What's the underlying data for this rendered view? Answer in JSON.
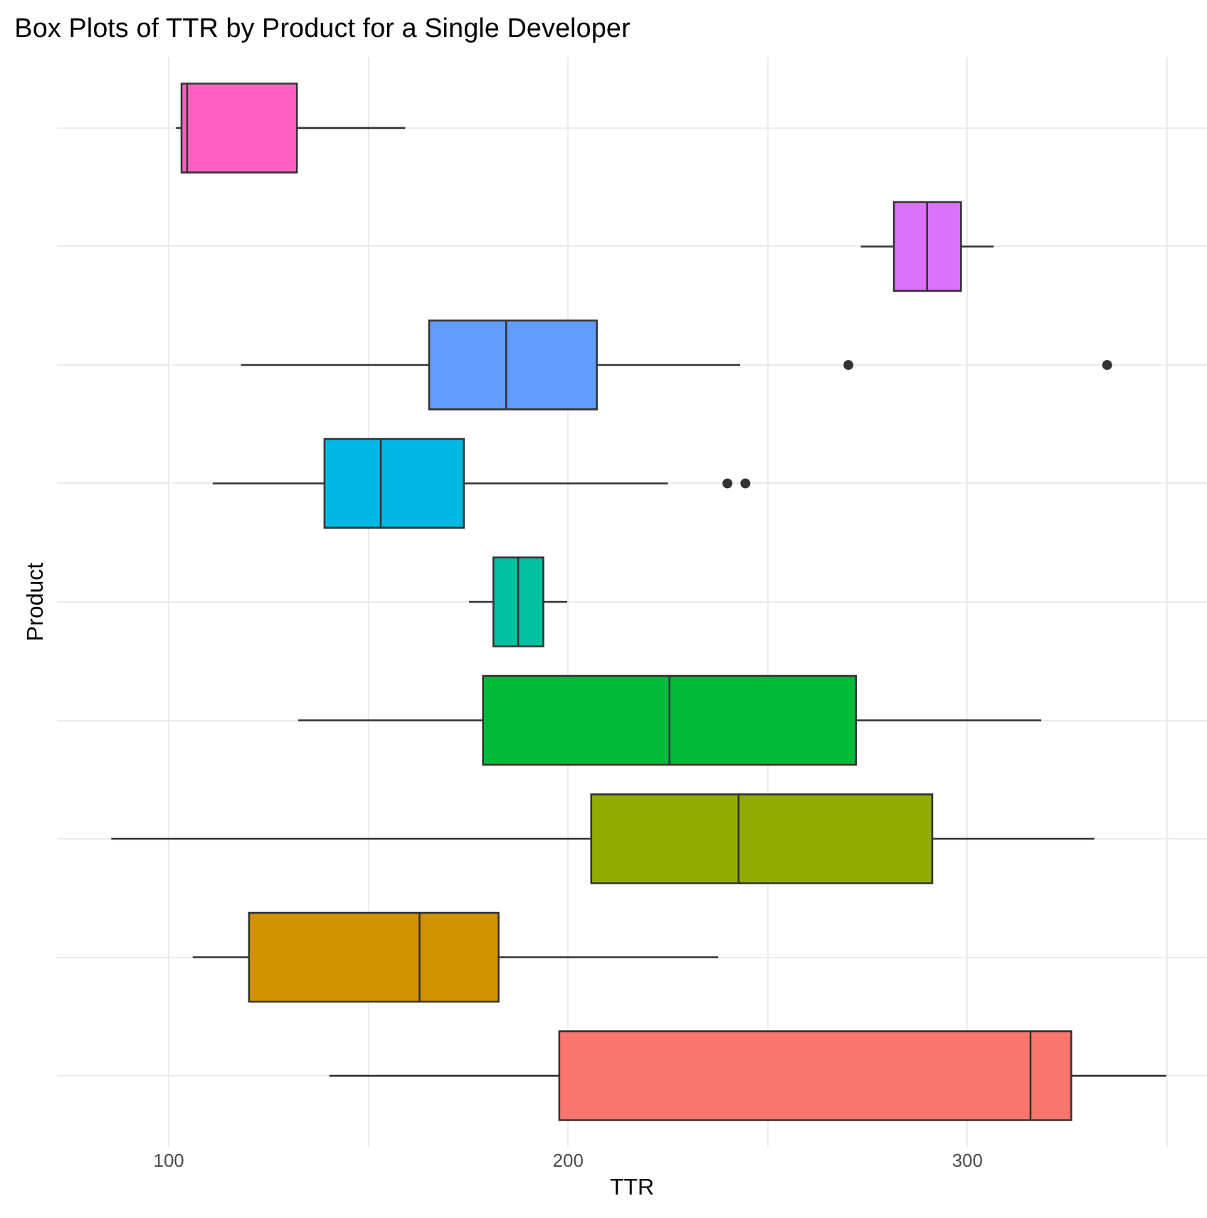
{
  "chart_data": {
    "type": "box",
    "orientation": "horizontal",
    "title": "Box Plots of TTR by Product for a Single Developer",
    "xlabel": "TTR",
    "ylabel": "Product",
    "categories": [
      null,
      null,
      null,
      null,
      null,
      null,
      null,
      null,
      null
    ],
    "colors": [
      "#ff61c3",
      "#db72fb",
      "#619cff",
      "#00b9e3",
      "#00c19f",
      "#00ba38",
      "#93aa00",
      "#d39200",
      "#f8766d"
    ],
    "boxes": [
      {
        "low": 101.8,
        "q1": 103.2,
        "median": 104.6,
        "q3": 132.1,
        "high": 159.2
      },
      {
        "low": 273.3,
        "q1": 281.6,
        "median": 289.9,
        "q3": 298.4,
        "high": 306.6
      },
      {
        "low": 118.1,
        "q1": 165.2,
        "median": 184.5,
        "q3": 207.2,
        "high": 243.1,
        "outliers": [
          270.2,
          335.0
        ]
      },
      {
        "low": 111.0,
        "q1": 139.0,
        "median": 153.1,
        "q3": 173.9,
        "high": 225.0,
        "outliers": [
          239.9,
          244.4
        ]
      },
      {
        "low": 175.2,
        "q1": 181.3,
        "median": 187.5,
        "q3": 193.8,
        "high": 199.8
      },
      {
        "low": 132.4,
        "q1": 178.7,
        "median": 225.4,
        "q3": 272.1,
        "high": 318.5
      },
      {
        "low": 85.6,
        "q1": 205.8,
        "median": 242.7,
        "q3": 291.2,
        "high": 331.8
      },
      {
        "low": 106.0,
        "q1": 120.1,
        "median": 162.8,
        "q3": 182.6,
        "high": 237.6
      },
      {
        "low": 140.2,
        "q1": 197.8,
        "median": 315.8,
        "q3": 326.0,
        "high": 349.8
      }
    ],
    "xlim": [
      72,
      360
    ],
    "xticks": [
      100,
      {
        "value": 150,
        "label": null
      },
      200,
      {
        "value": 250,
        "label": null
      },
      300,
      {
        "value": 350,
        "label": null
      }
    ],
    "grid": true,
    "tick_labels": "x",
    "marker": "circle"
  }
}
